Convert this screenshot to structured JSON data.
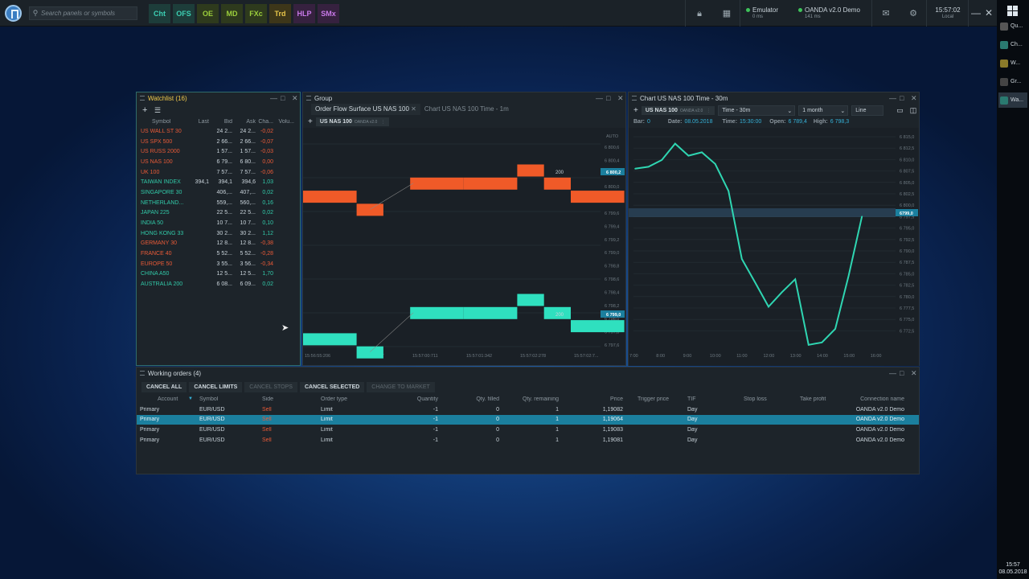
{
  "topbar": {
    "search_placeholder": "Search panels or symbols",
    "panel_buttons": [
      {
        "label": "Cht",
        "color": "#3ccfb3",
        "bg": "#1d3d3a"
      },
      {
        "label": "OFS",
        "color": "#3ccfb3",
        "bg": "#1d3d3a"
      },
      {
        "label": "OE",
        "color": "#9ccf3c",
        "bg": "#2e3a1d"
      },
      {
        "label": "MD",
        "color": "#9ccf3c",
        "bg": "#2e3a1d"
      },
      {
        "label": "FXc",
        "color": "#9ccf3c",
        "bg": "#2e3a1d"
      },
      {
        "label": "Trd",
        "color": "#e8c64a",
        "bg": "#3d3619"
      },
      {
        "label": "HLP",
        "color": "#c879e8",
        "bg": "#36213f"
      },
      {
        "label": "SMx",
        "color": "#c879e8",
        "bg": "#36213f"
      }
    ],
    "connections": [
      {
        "name": "Emulator",
        "latency": "0 ms"
      },
      {
        "name": "OANDA v2.0 Demo",
        "latency": "141 ms"
      }
    ],
    "time": "15:57:02",
    "time_zone": "Local"
  },
  "taskbar": {
    "items": [
      {
        "label": "Qu...",
        "color": "#555"
      },
      {
        "label": "Ch...",
        "color": "#2a7a70"
      },
      {
        "label": "W...",
        "color": "#8a7a2a"
      },
      {
        "label": "Gr...",
        "color": "#444"
      },
      {
        "label": "Wa...",
        "color": "#2a7a70"
      }
    ],
    "time": "15:57",
    "date": "08.05.2018"
  },
  "watchlist": {
    "title": "Watchlist (16)",
    "columns": [
      "Symbol",
      "Last",
      "Bid",
      "Ask",
      "Cha...",
      "Volu..."
    ],
    "rows": [
      {
        "symbol": "US WALL ST 30",
        "last": "",
        "bid": "24 2...",
        "ask": "24 2...",
        "change": "-0,02",
        "dir": "dn"
      },
      {
        "symbol": "US SPX 500",
        "last": "",
        "bid": "2 66...",
        "ask": "2 66...",
        "change": "-0,07",
        "dir": "dn"
      },
      {
        "symbol": "US RUSS 2000",
        "last": "",
        "bid": "1 57...",
        "ask": "1 57...",
        "change": "-0,03",
        "dir": "dn"
      },
      {
        "symbol": "US NAS 100",
        "last": "",
        "bid": "6 79...",
        "ask": "6 80...",
        "change": "0,00",
        "dir": "dn"
      },
      {
        "symbol": "UK 100",
        "last": "",
        "bid": "7 57...",
        "ask": "7 57...",
        "change": "-0,06",
        "dir": "dn"
      },
      {
        "symbol": "TAIWAN INDEX",
        "last": "394,1",
        "bid": "394,1",
        "ask": "394,6",
        "change": "1,03",
        "dir": "up"
      },
      {
        "symbol": "SINGAPORE 30",
        "last": "",
        "bid": "406,...",
        "ask": "407,...",
        "change": "0,02",
        "dir": "up"
      },
      {
        "symbol": "NETHERLAND...",
        "last": "",
        "bid": "559,...",
        "ask": "560,...",
        "change": "0,16",
        "dir": "up"
      },
      {
        "symbol": "JAPAN 225",
        "last": "",
        "bid": "22 5...",
        "ask": "22 5...",
        "change": "0,02",
        "dir": "up"
      },
      {
        "symbol": "INDIA 50",
        "last": "",
        "bid": "10 7...",
        "ask": "10 7...",
        "change": "0,10",
        "dir": "up"
      },
      {
        "symbol": "HONG KONG 33",
        "last": "",
        "bid": "30 2...",
        "ask": "30 2...",
        "change": "1,12",
        "dir": "up"
      },
      {
        "symbol": "GERMANY 30",
        "last": "",
        "bid": "12 8...",
        "ask": "12 8...",
        "change": "-0,38",
        "dir": "dn"
      },
      {
        "symbol": "FRANCE 40",
        "last": "",
        "bid": "5 52...",
        "ask": "5 52...",
        "change": "-0,28",
        "dir": "dn"
      },
      {
        "symbol": "EUROPE 50",
        "last": "",
        "bid": "3 55...",
        "ask": "3 56...",
        "change": "-0,34",
        "dir": "dn"
      },
      {
        "symbol": "CHINA A50",
        "last": "",
        "bid": "12 5...",
        "ask": "12 5...",
        "change": "1,70",
        "dir": "up"
      },
      {
        "symbol": "AUSTRALIA 200",
        "last": "",
        "bid": "6 08...",
        "ask": "6 09...",
        "change": "0,02",
        "dir": "up"
      }
    ]
  },
  "group": {
    "title": "Group",
    "tabs": [
      "Order Flow Surface US NAS 100",
      "Chart US NAS 100 Time - 1m"
    ],
    "symbol": "US NAS 100",
    "broker": "OANDA v2.0",
    "axis_auto": "AUTO",
    "top_price_label": "6 800,2",
    "bottom_price_label": "6 799,0",
    "size_label_top": "200",
    "size_label_bottom": "200",
    "yticks": [
      "6 800,6",
      "6 800,4",
      "6 800,2",
      "6 800,0",
      "6 799,8",
      "6 799,6",
      "6 799,4",
      "6 799,2",
      "6 799,0",
      "6 798,8",
      "6 798,6",
      "6 798,4",
      "6 798,2",
      "6 798,0",
      "6 797,8",
      "6 797,6"
    ],
    "xticks": [
      "15:56:55:206",
      "15:56:58:117",
      "15:57:00:711",
      "15:57:01:342",
      "15:57:02:278",
      "15:57:02:7..."
    ],
    "ask_blocks": [
      [
        0,
        2,
        3
      ],
      [
        2,
        3,
        2
      ],
      [
        4,
        6,
        4
      ],
      [
        6,
        8,
        4
      ],
      [
        8,
        9,
        5
      ],
      [
        9,
        10,
        4
      ],
      [
        10,
        12,
        3
      ]
    ],
    "bid_blocks": [
      [
        0,
        2,
        2
      ],
      [
        2,
        3,
        1
      ],
      [
        4,
        6,
        4
      ],
      [
        6,
        8,
        4
      ],
      [
        8,
        9,
        5
      ],
      [
        9,
        10,
        4
      ],
      [
        10,
        12,
        3
      ]
    ]
  },
  "chart": {
    "title": "Chart US NAS 100 Time - 30m",
    "symbol": "US NAS 100",
    "broker": "OANDA v2.0",
    "timeframe": "Time - 30m",
    "range": "1 month",
    "style": "Line",
    "info": {
      "bar_label": "Bar:",
      "bar": "0",
      "date_label": "Date:",
      "date": "08.05.2018",
      "time_label": "Time:",
      "time": "15:30:00",
      "open_label": "Open:",
      "open": "6 789,4",
      "high_label": "High:",
      "high": "6 798,3"
    },
    "axis_auto": "AUTO",
    "price_label": "6799,0",
    "yticks": [
      "6 815,0",
      "6 812,5",
      "6 810,0",
      "6 807,5",
      "6 805,0",
      "6 802,5",
      "6 800,0",
      "6 797,5",
      "6 795,0",
      "6 792,5",
      "6 790,0",
      "6 787,5",
      "6 785,0",
      "6 782,5",
      "6 780,0",
      "6 777,5",
      "6 775,0",
      "6 772,5"
    ],
    "xticks": [
      "7:00",
      "8:00",
      "9:00",
      "10:00",
      "11:00",
      "12:00",
      "13:00",
      "14:00",
      "15:00",
      "16:00"
    ]
  },
  "chart_data": {
    "type": "line",
    "x": [
      "7:00",
      "7:30",
      "8:00",
      "8:30",
      "9:00",
      "9:30",
      "10:00",
      "10:30",
      "11:00",
      "11:30",
      "12:00",
      "12:30",
      "13:00",
      "13:30",
      "14:00",
      "14:30",
      "15:00",
      "15:30"
    ],
    "series": [
      {
        "values": [
          6808.2,
          6808.6,
          6810.0,
          6813.4,
          6810.9,
          6811.6,
          6809.2,
          6803.6,
          6789.5,
          6784.6,
          6779.6,
          6782.6,
          6785.3,
          6771.7,
          6772.2,
          6775.0,
          6786.0,
          6798.3
        ]
      }
    ],
    "ylim": [
      6771.0,
      6816.0
    ],
    "color": "#2fd6b2"
  },
  "orders": {
    "title": "Working orders (4)",
    "buttons": [
      {
        "label": "CANCEL ALL",
        "enabled": true
      },
      {
        "label": "CANCEL LIMITS",
        "enabled": true
      },
      {
        "label": "CANCEL STOPS",
        "enabled": false
      },
      {
        "label": "CANCEL SELECTED",
        "enabled": true
      },
      {
        "label": "CHANGE TO MARKET",
        "enabled": false
      }
    ],
    "columns": [
      "Account",
      "Symbol",
      "Side",
      "Order type",
      "Quantity",
      "Qty. filled",
      "Qty. remaining",
      "Price",
      "Trigger price",
      "TIF",
      "Stop loss",
      "Take profit",
      "Connection name"
    ],
    "rows": [
      {
        "account": "Primary",
        "symbol": "EUR/USD",
        "side": "Sell",
        "type": "Limit",
        "qty": "-1",
        "filled": "0",
        "remaining": "1",
        "price": "1,19082",
        "trigger": "",
        "tif": "Day",
        "sl": "",
        "tp": "",
        "conn": "OANDA v2.0 Demo",
        "selected": false
      },
      {
        "account": "Primary",
        "symbol": "EUR/USD",
        "side": "Sell",
        "type": "Limit",
        "qty": "-1",
        "filled": "0",
        "remaining": "1",
        "price": "1,19064",
        "trigger": "",
        "tif": "Day",
        "sl": "",
        "tp": "",
        "conn": "OANDA v2.0 Demo",
        "selected": true
      },
      {
        "account": "Primary",
        "symbol": "EUR/USD",
        "side": "Sell",
        "type": "Limit",
        "qty": "-1",
        "filled": "0",
        "remaining": "1",
        "price": "1,19083",
        "trigger": "",
        "tif": "Day",
        "sl": "",
        "tp": "",
        "conn": "OANDA v2.0 Demo",
        "selected": false
      },
      {
        "account": "Primary",
        "symbol": "EUR/USD",
        "side": "Sell",
        "type": "Limit",
        "qty": "-1",
        "filled": "0",
        "remaining": "1",
        "price": "1,19081",
        "trigger": "",
        "tif": "Day",
        "sl": "",
        "tp": "",
        "conn": "OANDA v2.0 Demo",
        "selected": false
      }
    ]
  },
  "colors": {
    "ask": "#f05a28",
    "bid": "#2fe0bf",
    "accent": "#35b0d6",
    "selection": "#1b7f9e"
  }
}
